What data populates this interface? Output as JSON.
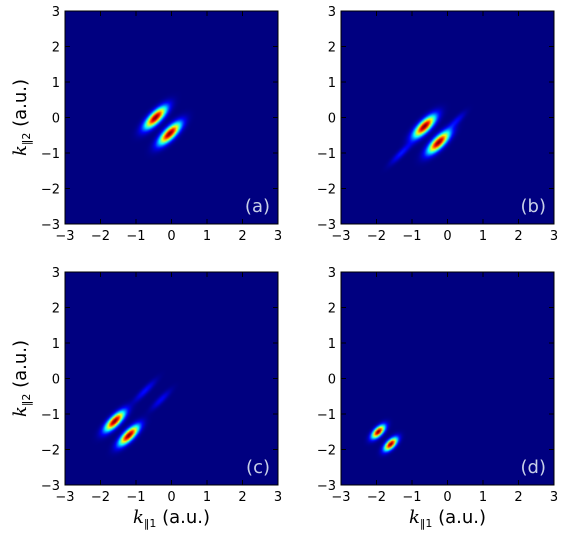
{
  "chart_data": [
    {
      "type": "heatmap",
      "panel_label": "(a)",
      "xlim": [
        -3,
        3
      ],
      "ylim": [
        -3,
        3
      ],
      "xticks": [
        "−3",
        "−2",
        "−1",
        "0",
        "1",
        "2",
        "3"
      ],
      "yticks": [
        "3",
        "2",
        "1",
        "0",
        "−1",
        "−2",
        "−3"
      ],
      "ylabel": {
        "var": "k",
        "sub": "‖2",
        "unit": " (a.u.)"
      },
      "xlabel": null,
      "colormap": "jet",
      "background": "#00007f",
      "blobs": [
        {
          "x": -0.45,
          "y": 0.0,
          "peak": 1.0,
          "length": 0.55,
          "width": 0.2,
          "angle_deg": 45
        },
        {
          "x": -0.05,
          "y": -0.45,
          "peak": 1.0,
          "length": 0.55,
          "width": 0.2,
          "angle_deg": 45
        }
      ]
    },
    {
      "type": "heatmap",
      "panel_label": "(b)",
      "xlim": [
        -3,
        3
      ],
      "ylim": [
        -3,
        3
      ],
      "xticks": [
        "−3",
        "−2",
        "−1",
        "0",
        "1",
        "2",
        "3"
      ],
      "yticks": [
        "3",
        "2",
        "1",
        "0",
        "−1",
        "−2",
        "−3"
      ],
      "ylabel": null,
      "xlabel": null,
      "colormap": "jet",
      "background": "#00007f",
      "blobs": [
        {
          "x": -0.65,
          "y": -0.25,
          "peak": 1.0,
          "length": 0.55,
          "width": 0.2,
          "angle_deg": 45
        },
        {
          "x": -0.25,
          "y": -0.7,
          "peak": 1.0,
          "length": 0.55,
          "width": 0.2,
          "angle_deg": 45
        },
        {
          "x": -1.3,
          "y": -1.0,
          "peak": 0.15,
          "length": 0.55,
          "width": 0.12,
          "angle_deg": 45
        },
        {
          "x": 0.25,
          "y": -0.1,
          "peak": 0.12,
          "length": 0.45,
          "width": 0.12,
          "angle_deg": 45
        }
      ]
    },
    {
      "type": "heatmap",
      "panel_label": "(c)",
      "xlim": [
        -3,
        3
      ],
      "ylim": [
        -3,
        3
      ],
      "xticks": [
        "−3",
        "−2",
        "−1",
        "0",
        "1",
        "2",
        "3"
      ],
      "yticks": [
        "3",
        "2",
        "1",
        "0",
        "−1",
        "−2",
        "−3"
      ],
      "ylabel": {
        "var": "k",
        "sub": "‖2",
        "unit": " (a.u.)"
      },
      "xlabel": {
        "var": "k",
        "sub": "‖1",
        "unit": " (a.u.)"
      },
      "colormap": "jet",
      "background": "#00007f",
      "blobs": [
        {
          "x": -1.6,
          "y": -1.2,
          "peak": 1.0,
          "length": 0.5,
          "width": 0.18,
          "angle_deg": 45
        },
        {
          "x": -1.2,
          "y": -1.6,
          "peak": 1.0,
          "length": 0.5,
          "width": 0.18,
          "angle_deg": 45
        },
        {
          "x": -0.75,
          "y": -0.35,
          "peak": 0.14,
          "length": 0.55,
          "width": 0.12,
          "angle_deg": 45
        },
        {
          "x": -0.3,
          "y": -0.6,
          "peak": 0.12,
          "length": 0.5,
          "width": 0.12,
          "angle_deg": 45
        }
      ]
    },
    {
      "type": "heatmap",
      "panel_label": "(d)",
      "xlim": [
        -3,
        3
      ],
      "ylim": [
        -3,
        3
      ],
      "xticks": [
        "−3",
        "−2",
        "−1",
        "0",
        "1",
        "2",
        "3"
      ],
      "yticks": [
        "3",
        "2",
        "1",
        "0",
        "−1",
        "−2",
        "−3"
      ],
      "ylabel": null,
      "xlabel": {
        "var": "k",
        "sub": "‖1",
        "unit": " (a.u.)"
      },
      "colormap": "jet",
      "background": "#00007f",
      "blobs": [
        {
          "x": -1.95,
          "y": -1.5,
          "peak": 1.0,
          "length": 0.32,
          "width": 0.15,
          "angle_deg": 45
        },
        {
          "x": -1.6,
          "y": -1.85,
          "peak": 1.0,
          "length": 0.32,
          "width": 0.15,
          "angle_deg": 45
        }
      ]
    }
  ]
}
